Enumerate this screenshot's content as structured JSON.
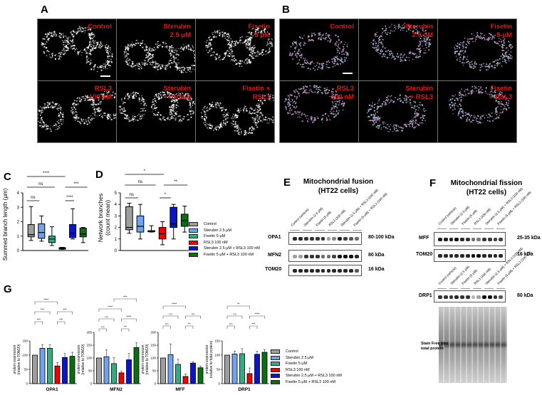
{
  "panels": {
    "A": {
      "label": "A",
      "images": [
        {
          "label_line1": "Control",
          "label_line2": ""
        },
        {
          "label_line1": "Sterubin",
          "label_line2": "2.5 μM"
        },
        {
          "label_line1": "Fisetin",
          "label_line2": "5 μM"
        },
        {
          "label_line1": "RSL3",
          "label_line2": "100 nM"
        },
        {
          "label_line1": "Sterubin",
          "label_line2": "+ RSL3"
        },
        {
          "label_line1": "Fisetin +",
          "label_line2": "RSL3"
        }
      ]
    },
    "B": {
      "label": "B",
      "images": [
        {
          "label_line1": "Control",
          "label_line2": ""
        },
        {
          "label_line1": "Sterubin",
          "label_line2": "2.5 μM"
        },
        {
          "label_line1": "Fisetin",
          "label_line2": "5 μM"
        },
        {
          "label_line1": "RSL3",
          "label_line2": "100 nM"
        },
        {
          "label_line1": "Sterubin",
          "label_line2": "+ RSL3"
        },
        {
          "label_line1": "Fisetin",
          "label_line2": "+ RSL3"
        }
      ]
    },
    "C": {
      "label": "C",
      "ylabel": "Summed branch length (μm)",
      "ticks": [
        "0",
        "1",
        "2",
        "3",
        "4"
      ],
      "sig": {
        "top": "****",
        "mid_left": "ns",
        "mid_right": "***",
        "low_left": "ns",
        "low_right": "****"
      }
    },
    "D": {
      "label": "D",
      "ylabel_line1": "Network branches",
      "ylabel_line2": "(count mean)",
      "ticks": [
        "0",
        "1",
        "2",
        "3",
        "4",
        "5"
      ],
      "sig": {
        "top": "*",
        "mid_left": "ns",
        "mid_right": "**",
        "low_left": "ns",
        "low_right": "*"
      }
    },
    "E": {
      "label": "E",
      "title_line1": "Mitochondrial fusion",
      "title_line2": "(HT22 cells)",
      "lanes": [
        "Control (vehicle)",
        "Sterubin (2.5 μM)",
        "Fisetin (5 μM)",
        "RSL3 (100 nM)",
        "Sterubin (2.5 μM) + RSL3 (100 nM)",
        "Fisetin (5 μM) + RSL3 (100 nM)"
      ],
      "blots": [
        {
          "name": "OPA1",
          "kda": "80-100 kDa"
        },
        {
          "name": "MFN2",
          "kda": "80 kDa"
        },
        {
          "name": "TOM20",
          "kda": "16 kDa"
        }
      ]
    },
    "F": {
      "label": "F",
      "title_line1": "Mitochondrial fission",
      "title_line2": "(HT22 cells)",
      "lanes": [
        "Control (vehicle)",
        "Sterubin (2.5 μM)",
        "Fisetin (5 μM)",
        "RSL3 (100 nM)",
        "Sterubin (2.5 μM) + RSL3 (100 nM)",
        "Fisetin (5 μM) + RSL3 (100 nM)"
      ],
      "blots": [
        {
          "name": "MFF",
          "kda": "25-35 kDa"
        },
        {
          "name": "TOM20",
          "kda": "16 kDa"
        },
        {
          "name": "DRP1",
          "kda": "80 kDa"
        }
      ],
      "stain_label_line1": "Stain Free blot",
      "stain_label_line2": "total protein"
    },
    "G": {
      "label": "G",
      "charts": [
        {
          "name": "OPA1",
          "ylabel1": "protein expression",
          "ylabel2": "(relative to TOM20)",
          "ticks": [
            "0",
            "50",
            "100",
            "150"
          ],
          "sig": [
            "****",
            "***",
            "***",
            "***",
            "***",
            "***"
          ]
        },
        {
          "name": "MFN2",
          "ylabel1": "protein expression",
          "ylabel2": "(relative to TOM20)",
          "ticks": [
            "0",
            "50",
            "100",
            "150",
            "200"
          ],
          "sig": [
            "***",
            "****",
            "ns",
            "ns",
            "****",
            "**"
          ]
        },
        {
          "name": "MFF",
          "ylabel1": "protein expression",
          "ylabel2": "(relative to TOM20)",
          "ticks": [
            "0",
            "50",
            "100",
            "150",
            "200"
          ],
          "sig": [
            "****",
            "ns",
            "ns",
            "ns",
            "**"
          ]
        },
        {
          "name": "DRP1",
          "ylabel1": "protein expression",
          "ylabel2": "(relative to total protein)",
          "ticks": [
            "0",
            "50",
            "100",
            "150"
          ],
          "sig": [
            "**",
            "ns",
            "****",
            "ns",
            "***"
          ]
        }
      ]
    }
  },
  "legend": [
    {
      "label": "Control",
      "color": "#9e9e9e"
    },
    {
      "label": "Sterubin 2.5 μM",
      "color": "#6fa3ef"
    },
    {
      "label": "Fisetin 5 μM",
      "color": "#2fae86"
    },
    {
      "label": "RSL3 100 nM",
      "color": "#f00000"
    },
    {
      "label": "Sterubin 2.5 μM + RSL3 100 nM",
      "color": "#0a14c8"
    },
    {
      "label": "Fisetin 5 μM + RSL3 100 nM",
      "color": "#0a6e12"
    }
  ],
  "chart_data": [
    {
      "type": "box",
      "title": "C",
      "ylabel": "Summed branch length (μm)",
      "ylim": [
        0,
        4
      ],
      "categories": [
        "Control",
        "Sterubin 2.5 μM",
        "Fisetin 5 μM",
        "RSL3 100 nM",
        "Sterubin 2.5 μM + RSL3 100 nM",
        "Fisetin 5 μM + RSL3 100 nM"
      ],
      "boxes": [
        {
          "min": 0.7,
          "q1": 0.95,
          "median": 1.1,
          "q3": 1.8,
          "max": 3.05
        },
        {
          "min": 0.65,
          "q1": 0.85,
          "median": 1.25,
          "q3": 1.85,
          "max": 2.4
        },
        {
          "min": 0.35,
          "q1": 0.55,
          "median": 0.8,
          "q3": 1.0,
          "max": 1.65
        },
        {
          "min": 0.08,
          "q1": 0.1,
          "median": 0.15,
          "q3": 0.2,
          "max": 0.22
        },
        {
          "min": 0.8,
          "q1": 0.9,
          "median": 1.2,
          "q3": 1.8,
          "max": 2.9
        },
        {
          "min": 0.55,
          "q1": 0.95,
          "median": 1.15,
          "q3": 1.55,
          "max": 1.6
        }
      ],
      "annotations": [
        "****",
        "ns",
        "***",
        "ns",
        "****"
      ]
    },
    {
      "type": "box",
      "title": "D",
      "ylabel": "Network branches (count mean)",
      "ylim": [
        0,
        5
      ],
      "categories": [
        "Control",
        "Sterubin 2.5 μM",
        "Fisetin 5 μM",
        "RSL3 100 nM",
        "Sterubin 2.5 μM + RSL3 100 nM",
        "Fisetin 5 μM + RSL3 100 nM"
      ],
      "boxes": [
        {
          "min": 1.5,
          "q1": 1.8,
          "median": 2.0,
          "q3": 3.8,
          "max": 4.1
        },
        {
          "min": 1.0,
          "q1": 1.6,
          "median": 2.1,
          "q3": 3.0,
          "max": 4.0
        },
        {
          "min": 1.6,
          "q1": 1.65,
          "median": 1.7,
          "q3": 1.72,
          "max": 2.15
        },
        {
          "min": 0.5,
          "q1": 1.0,
          "median": 1.45,
          "q3": 2.0,
          "max": 2.5
        },
        {
          "min": 1.0,
          "q1": 2.0,
          "median": 2.3,
          "q3": 3.75,
          "max": 4.0
        },
        {
          "min": 1.6,
          "q1": 2.1,
          "median": 2.6,
          "q3": 3.15,
          "max": 3.85
        }
      ],
      "annotations": [
        "*",
        "ns",
        "**",
        "ns",
        "*"
      ]
    },
    {
      "type": "bar",
      "title": "OPA1",
      "ylabel": "protein expression (relative to TOM20)",
      "ylim": [
        0,
        150
      ],
      "categories": [
        "Control",
        "Sterubin 2.5 μM",
        "Fisetin 5 μM",
        "RSL3 100 nM",
        "Sterubin 2.5 μM + RSL3 100 nM",
        "Fisetin 5 μM + RSL3 100 nM"
      ],
      "values": [
        100,
        124,
        124,
        62,
        92,
        96
      ],
      "errors": [
        0,
        13,
        13,
        12,
        14,
        14
      ],
      "annotations": [
        "****",
        "***",
        "***",
        "***",
        "***",
        "***"
      ]
    },
    {
      "type": "bar",
      "title": "MFN2",
      "ylabel": "protein expression (relative to TOM20)",
      "ylim": [
        0,
        200
      ],
      "categories": [
        "Control",
        "Sterubin 2.5 μM",
        "Fisetin 5 μM",
        "RSL3 100 nM",
        "Sterubin 2.5 μM + RSL3 100 nM",
        "Fisetin 5 μM + RSL3 100 nM"
      ],
      "values": [
        100,
        105,
        78,
        42,
        93,
        141
      ],
      "errors": [
        0,
        27,
        23,
        6,
        25,
        18
      ],
      "annotations": [
        "***",
        "****",
        "ns",
        "ns",
        "****",
        "**"
      ]
    },
    {
      "type": "bar",
      "title": "MFF",
      "ylabel": "protein expression (relative to TOM20)",
      "ylim": [
        0,
        200
      ],
      "categories": [
        "Control",
        "Sterubin 2.5 μM",
        "Fisetin 5 μM",
        "RSL3 100 nM",
        "Sterubin 2.5 μM + RSL3 100 nM",
        "Fisetin 5 μM + RSL3 100 nM"
      ],
      "values": [
        100,
        113,
        75,
        28,
        80,
        62
      ],
      "errors": [
        0,
        42,
        20,
        10,
        5,
        6
      ],
      "annotations": [
        "****",
        "ns",
        "ns",
        "ns",
        "**"
      ]
    },
    {
      "type": "bar",
      "title": "DRP1",
      "ylabel": "protein expression (relative to total protein)",
      "ylim": [
        0,
        150
      ],
      "categories": [
        "Control",
        "Sterubin 2.5 μM",
        "Fisetin 5 μM",
        "RSL3 100 nM",
        "Sterubin 2.5 μM + RSL3 100 nM",
        "Fisetin 5 μM + RSL3 100 nM"
      ],
      "values": [
        100,
        104,
        105,
        35,
        103,
        110
      ],
      "errors": [
        0,
        10,
        18,
        20,
        11,
        9
      ],
      "annotations": [
        "**",
        "ns",
        "****",
        "ns",
        "***"
      ]
    }
  ]
}
